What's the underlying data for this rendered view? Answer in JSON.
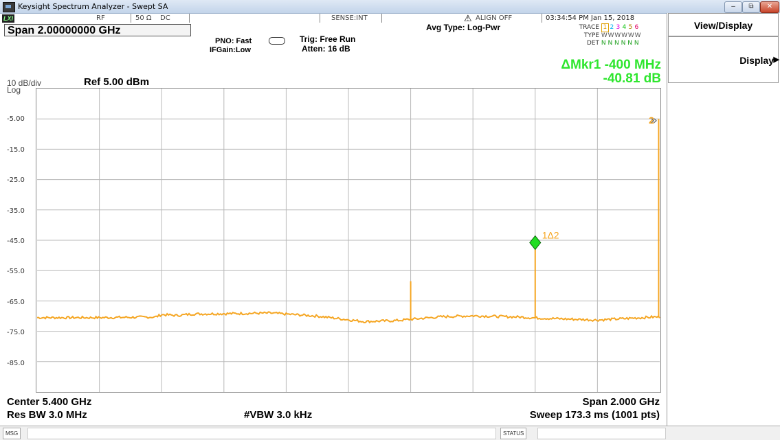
{
  "window": {
    "title": "Keysight Spectrum Analyzer - Swept SA",
    "lxi_badge": "LXI"
  },
  "status_row": {
    "rf": "RF",
    "impedance": "50 Ω",
    "coupling": "DC",
    "sense": "SENSE:INT",
    "align": "ALIGN OFF",
    "datetime": "03:34:54 PM Jan 15, 2018"
  },
  "header": {
    "span_title": "Span 2.00000000 GHz",
    "pno": "PNO: Fast",
    "ifgain": "IFGain:Low",
    "trig": "Trig: Free Run",
    "atten": "Atten: 16 dB",
    "avg_type": "Avg Type: Log-Pwr",
    "trace_label": "TRACE",
    "type_label": "TYPE",
    "det_label": "DET",
    "trace_numbers": [
      "1",
      "2",
      "3",
      "4",
      "5",
      "6"
    ],
    "trace_colors": [
      "#e0a000",
      "#00b0f0",
      "#e000e0",
      "#00c000",
      "#b08000",
      "#e00060"
    ],
    "type_values": "W W W W W W",
    "det_values": "N N N N N N"
  },
  "marker_readout": {
    "line1": "ΔMkr1 -400 MHz",
    "line2": "-40.81 dB"
  },
  "scale": {
    "div": "10 dB/div",
    "log": "Log",
    "ref": "Ref 5.00 dBm"
  },
  "chart_data": {
    "type": "line",
    "x_label_left": "Center 5.400 GHz",
    "x_label_right": "Span 2.000 GHz",
    "y_tick_labels": [
      "-5.00",
      "-15.0",
      "-25.0",
      "-35.0",
      "-45.0",
      "-55.0",
      "-65.0",
      "-75.0",
      "-85.0"
    ],
    "ylim": [
      -95,
      5
    ],
    "xlim": [
      4.4,
      6.4
    ],
    "x_unit": "GHz",
    "grid": true,
    "trace_color": "#f5a623",
    "noise_floor": [
      [
        4.4,
        -70.5
      ],
      [
        4.6,
        -70.5
      ],
      [
        4.78,
        -70.3
      ],
      [
        4.8,
        -69.5
      ],
      [
        4.85,
        -69.8
      ],
      [
        4.9,
        -69.3
      ],
      [
        5.0,
        -69.2
      ],
      [
        5.15,
        -69.0
      ],
      [
        5.3,
        -70.0
      ],
      [
        5.45,
        -71.8
      ],
      [
        5.55,
        -71.5
      ],
      [
        5.7,
        -70.2
      ],
      [
        5.8,
        -69.9
      ],
      [
        5.95,
        -70.3
      ],
      [
        6.0,
        -70.6
      ],
      [
        6.2,
        -71.3
      ],
      [
        6.38,
        -70.3
      ],
      [
        6.4,
        -70.3
      ]
    ],
    "spikes": [
      {
        "x": 5.6,
        "y": -58.5
      },
      {
        "x": 6.0,
        "y": -45.5
      },
      {
        "x": 6.4,
        "y": -5.0
      }
    ],
    "markers": [
      {
        "label": "1Δ2",
        "x": 6.0,
        "y": -45.8
      },
      {
        "label": "2",
        "x": 6.4,
        "y": -5.0
      }
    ]
  },
  "footer": {
    "center": "Center 5.400 GHz",
    "span": "Span 2.000 GHz",
    "res_bw": "Res BW 3.0 MHz",
    "vbw": "#VBW 3.0 kHz",
    "sweep": "Sweep  173.3 ms (1001 pts)"
  },
  "softkeys": {
    "title": "View/Display",
    "display": "Display"
  },
  "bottom_bar": {
    "msg": "MSG",
    "status": "STATUS"
  }
}
